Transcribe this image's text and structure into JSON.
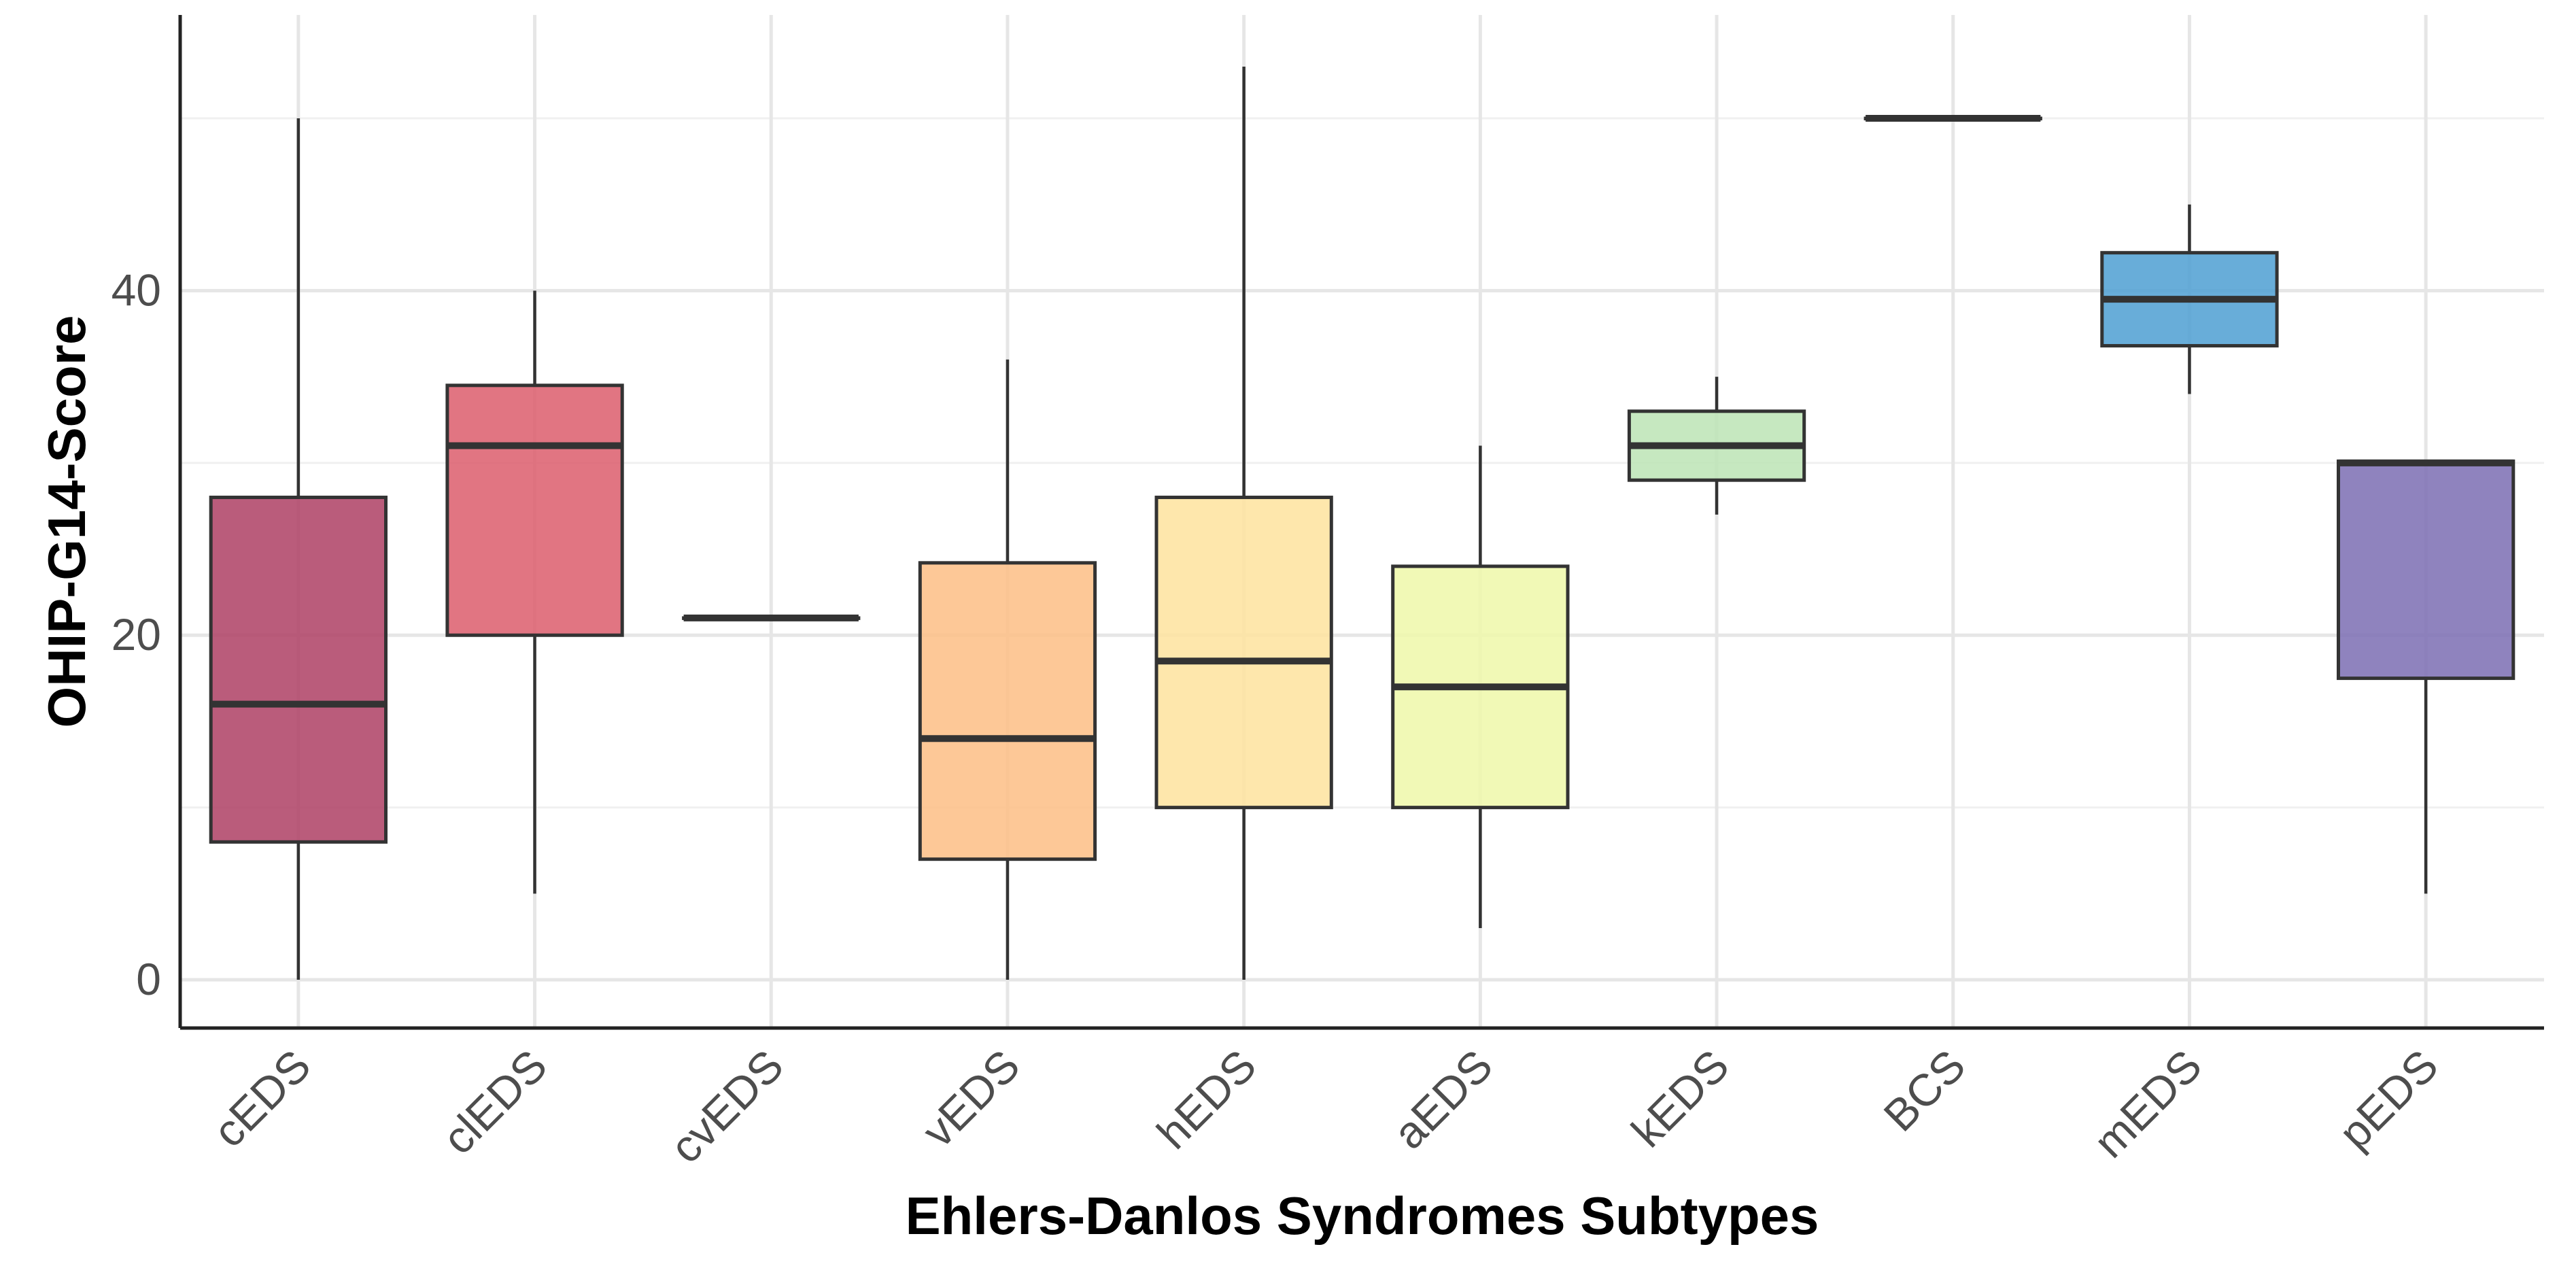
{
  "chart_data": {
    "type": "boxplot",
    "title": "",
    "xlabel": "Ehlers-Danlos Syndromes Subtypes",
    "ylabel": "OHIP-G14-Score",
    "ylim": [
      -2.8,
      56
    ],
    "yticks": [
      0,
      20,
      40
    ],
    "grid": true,
    "legend": "none",
    "categories": [
      "cEDS",
      "clEDS",
      "cvEDS",
      "vEDS",
      "hEDS",
      "aEDS",
      "kEDS",
      "BCS",
      "mEDS",
      "pEDS"
    ],
    "boxes": [
      {
        "category": "cEDS",
        "min": 0,
        "q1": 8,
        "median": 16,
        "q3": 28,
        "max": 50,
        "color": "#AE4064"
      },
      {
        "category": "clEDS",
        "min": 5,
        "q1": 20,
        "median": 31,
        "q3": 34.5,
        "max": 40,
        "color": "#DC5D6C"
      },
      {
        "category": "cvEDS",
        "min": 21,
        "q1": 21,
        "median": 21,
        "q3": 21,
        "max": 21,
        "color": "#F2A365"
      },
      {
        "category": "vEDS",
        "min": 0,
        "q1": 7,
        "median": 14,
        "q3": 24.2,
        "max": 36,
        "color": "#FDBE85"
      },
      {
        "category": "hEDS",
        "min": 0,
        "q1": 10,
        "median": 18.5,
        "q3": 28,
        "max": 53,
        "color": "#FEE39E"
      },
      {
        "category": "aEDS",
        "min": 3,
        "q1": 10,
        "median": 17,
        "q3": 24,
        "max": 31,
        "color": "#EEF8A9"
      },
      {
        "category": "kEDS",
        "min": 27,
        "q1": 29,
        "median": 31,
        "q3": 33,
        "max": 35,
        "color": "#BCE4B5"
      },
      {
        "category": "BCS",
        "min": 50,
        "q1": 50,
        "median": 50,
        "q3": 50,
        "max": 50,
        "color": "#4E9FD2"
      },
      {
        "category": "mEDS",
        "min": 34,
        "q1": 36.8,
        "median": 39.5,
        "q3": 42.2,
        "max": 45,
        "color": "#4E9FD2"
      },
      {
        "category": "pEDS",
        "min": 5,
        "q1": 17.5,
        "median": 30,
        "q3": 30.1,
        "max": 30.1,
        "color": "#7B6DB3"
      }
    ]
  }
}
